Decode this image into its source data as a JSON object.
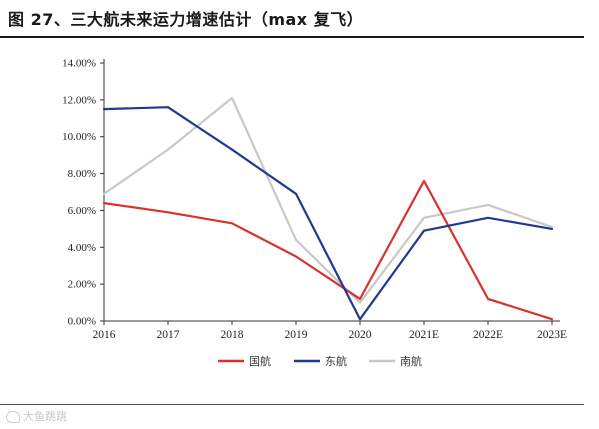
{
  "figure": {
    "title": "图 27、三大航未来运力增速估计（max 复飞）",
    "watermark": "大鱼跳跳"
  },
  "chart_data": {
    "type": "line",
    "title": "图 27、三大航未来运力增速估计（max 复飞）",
    "xlabel": "",
    "ylabel": "",
    "categories": [
      "2016",
      "2017",
      "2018",
      "2019",
      "2020",
      "2021E",
      "2022E",
      "2023E"
    ],
    "y_ticks": [
      "0.00%",
      "2.00%",
      "4.00%",
      "6.00%",
      "8.00%",
      "10.00%",
      "12.00%",
      "14.00%"
    ],
    "ylim": [
      0,
      14
    ],
    "grid": false,
    "legend_position": "bottom",
    "series": [
      {
        "name": "国航",
        "color": "#d8322f",
        "values": [
          6.4,
          5.9,
          5.3,
          3.5,
          1.2,
          7.6,
          1.2,
          0.1
        ]
      },
      {
        "name": "东航",
        "color": "#1f3a8f",
        "values": [
          11.5,
          11.6,
          9.3,
          6.9,
          0.1,
          4.9,
          5.6,
          5.0
        ]
      },
      {
        "name": "南航",
        "color": "#c8c8c8",
        "values": [
          6.9,
          9.3,
          12.1,
          4.4,
          1.0,
          5.6,
          6.3,
          5.1
        ]
      }
    ]
  }
}
